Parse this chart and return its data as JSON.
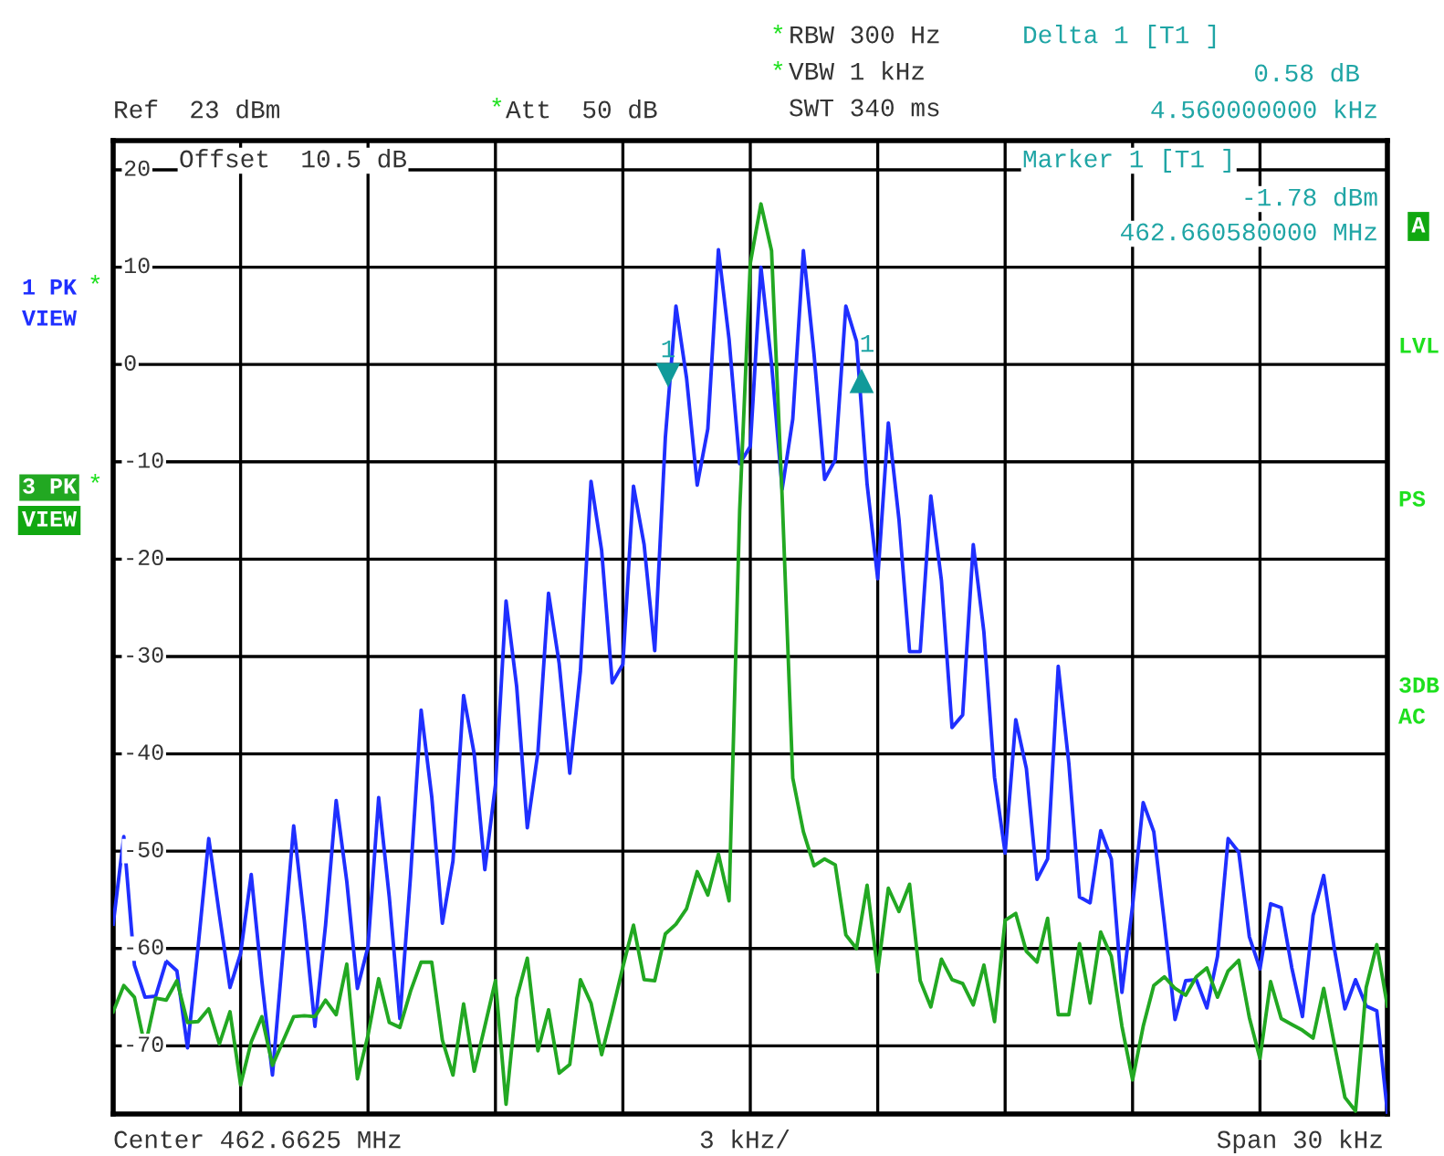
{
  "chart_data": {
    "type": "line",
    "annotations": [
      "1",
      "1",
      "*",
      "RBW 300 Hz",
      "*",
      "VBW 1 kHz",
      "SWT 340 ms",
      "Delta 1 [T1 ]",
      "0.58 dB",
      "4.560000000 kHz",
      "Ref  23 dBm",
      "*",
      "Att  50 dB",
      "Offset  10.5 dB",
      "Marker 1 [T1 ]",
      "-1.78 dBm",
      "462.660580000 MHz",
      "*",
      "VIEW",
      "*",
      "VIEW",
      "A",
      "LVL",
      "PS",
      "3DB",
      "AC",
      "Center 462.6625 MHz",
      "3 kHz/",
      "Span 30 kHz"
    ],
    "categories": [
      null,
      null,
      null,
      null,
      null,
      null,
      null,
      null,
      null,
      null,
      null,
      null,
      null,
      null,
      null,
      null,
      null,
      null,
      null,
      null,
      null,
      null,
      null,
      null,
      null,
      null,
      null,
      null,
      null,
      null,
      null,
      null,
      null,
      null,
      null,
      null,
      null,
      null,
      null,
      null,
      null,
      null,
      null,
      null,
      null,
      null,
      null,
      null,
      null,
      null,
      null,
      null,
      null,
      null,
      null,
      null,
      null,
      null,
      null,
      null,
      null,
      null,
      null,
      null,
      null,
      null,
      null,
      null,
      null,
      null,
      null,
      null,
      null,
      null,
      null,
      null,
      null,
      null,
      null,
      null,
      null,
      null,
      null,
      null,
      null,
      null,
      null,
      null,
      null,
      null,
      null,
      null,
      null,
      null,
      null,
      null,
      null,
      null,
      null,
      null,
      null,
      null,
      null,
      null,
      null,
      null,
      null,
      null,
      null,
      null,
      null,
      null,
      null,
      null,
      null,
      null,
      null,
      null,
      null,
      null,
      null
    ],
    "ylim": [
      -77,
      23
    ],
    "yticks": [
      20,
      10,
      0,
      -10,
      -20,
      -30,
      -40,
      -50,
      -60,
      -70
    ],
    "grid": true,
    "line_style": "solid",
    "series": [
      {
        "name": "1 PK",
        "color": "#1f2fff",
        "values": [
          -57.5,
          -48.5,
          -61.7,
          -65,
          -64.9,
          -61.3,
          -62.3,
          -70.2,
          -59.8,
          -48.7,
          -56.5,
          -64,
          -60.5,
          -52.4,
          -63.3,
          -73,
          -60.3,
          -47.4,
          -57.1,
          -68,
          -57.6,
          -44.8,
          -53.1,
          -64.1,
          -59.8,
          -44.5,
          -54.7,
          -67.2,
          -52.6,
          -35.5,
          -44.4,
          -57.4,
          -51,
          -34,
          -40,
          -51.9,
          -43.2,
          -24.3,
          -33.1,
          -47.6,
          -39.8,
          -23.5,
          -30.7,
          -42,
          -31.5,
          -12,
          -19.1,
          -32.7,
          -30.8,
          -12.5,
          -18.5,
          -29.4,
          -7.5,
          6,
          -1.4,
          -12.4,
          -6.6,
          11.8,
          2.6,
          -10.2,
          -8.4,
          10,
          0.1,
          -12.8,
          -5.6,
          11.7,
          1.1,
          -11.8,
          -9.8,
          6,
          2.4,
          -12.3,
          -22,
          -6,
          -15.9,
          -29.5,
          -29.5,
          -13.5,
          -22.2,
          -37.3,
          -36,
          -18.5,
          -27.5,
          -42.4,
          -50.2,
          -36.5,
          -41.5,
          -52.9,
          -50.8,
          -31,
          -41,
          -54.7,
          -55.3,
          -47.9,
          -50.8,
          -64.5,
          -55.6,
          -45,
          -48,
          -57.4,
          -67.3,
          -63.3,
          -63.2,
          -66.1,
          -60.8,
          -48.7,
          -50.1,
          -58.8,
          -62.1,
          -55.4,
          -55.8,
          -62,
          -67,
          -56.6,
          -52.5,
          -60,
          -66.2,
          -63.2,
          -65.9,
          -66.4,
          -76.8
        ]
      },
      {
        "name": "3 PK",
        "color": "#22a822",
        "values": [
          -66.5,
          -63.8,
          -65,
          -70.1,
          -65.1,
          -65.3,
          -63.3,
          -67.6,
          -67.5,
          -66.2,
          -69.8,
          -66.5,
          -74,
          -69.6,
          -67,
          -72,
          -69.5,
          -67,
          -66.9,
          -67,
          -65.3,
          -66.8,
          -61.6,
          -73.4,
          -68.9,
          -63.1,
          -67.6,
          -68.1,
          -64.4,
          -61.4,
          -61.4,
          -69.4,
          -73,
          -65.7,
          -72.6,
          -68,
          -63.3,
          -76,
          -65.1,
          -61,
          -70.5,
          -66.3,
          -72.8,
          -71.9,
          -63.2,
          -65.6,
          -70.9,
          -66.5,
          -61.9,
          -57.6,
          -63.2,
          -63.3,
          -58.5,
          -57.5,
          -55.9,
          -52.1,
          -54.5,
          -50.3,
          -55.1,
          -15,
          10.4,
          16.5,
          11.7,
          -13.6,
          -42.5,
          -48,
          -51.5,
          -50.8,
          -51.4,
          -58.6,
          -60,
          -53.5,
          -62.4,
          -53.8,
          -56.2,
          -53.4,
          -63.3,
          -66,
          -61.1,
          -63.2,
          -63.6,
          -65.8,
          -61.7,
          -67.5,
          -57.1,
          -56.4,
          -60.3,
          -61.4,
          -56.9,
          -66.8,
          -66.8,
          -59.5,
          -65.6,
          -58.3,
          -60.8,
          -68,
          -73.5,
          -68,
          -63.8,
          -62.9,
          -64.1,
          -64.8,
          -62.9,
          -62,
          -65,
          -62.3,
          -61.2,
          -67.1,
          -71.3,
          -63.4,
          -67.2,
          -67.8,
          -68.4,
          -69.2,
          -64.1,
          -69.8,
          -75.3,
          -76.7,
          -64,
          -59.6,
          -65.9
        ]
      }
    ]
  }
}
